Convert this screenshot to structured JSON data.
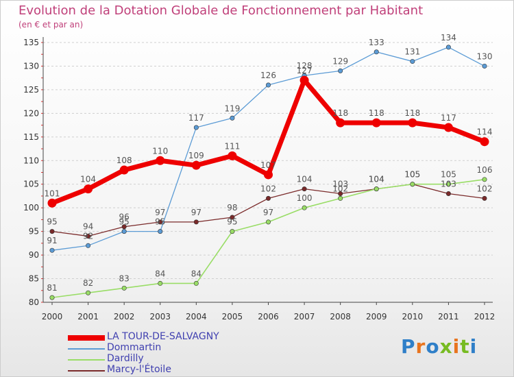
{
  "chart_data": {
    "type": "line",
    "title": "Evolution de la Dotation Globale de Fonctionnement par Habitant",
    "subtitle": "(en € et par an)",
    "xlabel": "",
    "ylabel": "",
    "categories": [
      "2000",
      "2001",
      "2002",
      "2003",
      "2004",
      "2005",
      "2006",
      "2007",
      "2008",
      "2009",
      "2010",
      "2011",
      "2012"
    ],
    "ylim": [
      80,
      135
    ],
    "yticks": [
      80,
      85,
      90,
      95,
      100,
      105,
      110,
      115,
      120,
      125,
      130,
      135
    ],
    "grid": "horizontal dashed",
    "legend_position": "bottom-left",
    "series": [
      {
        "name": "LA TOUR-DE-SALVAGNY",
        "color": "#ee0000",
        "values": [
          101,
          104,
          108,
          110,
          109,
          111,
          107,
          127,
          118,
          118,
          118,
          117,
          114
        ]
      },
      {
        "name": "Dommartin",
        "color": "#5b9bd5",
        "values": [
          91,
          92,
          95,
          95,
          117,
          119,
          126,
          128,
          129,
          133,
          131,
          134,
          130
        ]
      },
      {
        "name": "Dardilly",
        "color": "#99dd66",
        "values": [
          81,
          82,
          83,
          84,
          84,
          95,
          97,
          100,
          102,
          104,
          105,
          105,
          106
        ]
      },
      {
        "name": "Marcy-l'Étoile",
        "color": "#7a2a2a",
        "values": [
          95,
          94,
          96,
          97,
          97,
          98,
          102,
          104,
          103,
          104,
          105,
          103,
          102
        ]
      }
    ]
  },
  "logo": {
    "text": "Proxiti",
    "colors": [
      "#2f7fc8",
      "#e8741e",
      "#2f7fc8",
      "#77bb22",
      "#e8741e",
      "#77bb22",
      "#2f7fc8"
    ]
  }
}
